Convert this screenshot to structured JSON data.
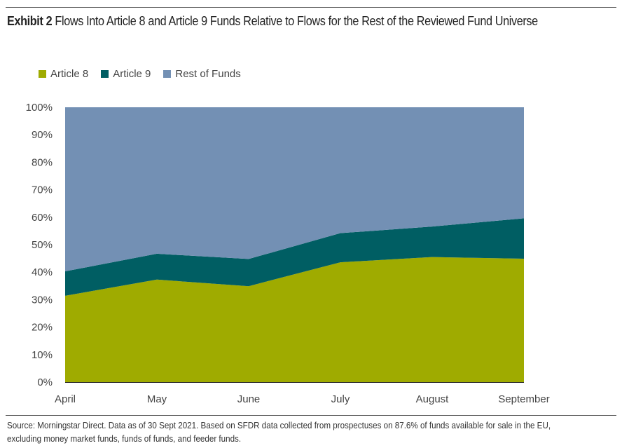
{
  "title_bold": "Exhibit 2",
  "title_rest": "Flows Into Article 8 and Article 9 Funds Relative to Flows for the Rest of the Reviewed Fund Universe",
  "source_line1": "Source: Morningstar Direct. Data as of 30 Sept 2021. Based on SFDR data collected from prospectuses on 87.6% of funds available for sale in the EU,",
  "source_line2": "excluding money market funds, funds of funds, and feeder funds.",
  "chart_data": {
    "type": "area",
    "stacked": true,
    "percent": true,
    "categories": [
      "April",
      "May",
      "June",
      "July",
      "August",
      "September"
    ],
    "series": [
      {
        "name": "Article 8",
        "color": "#9fab00",
        "values": [
          31.4,
          37.3,
          34.9,
          43.6,
          45.5,
          44.9
        ]
      },
      {
        "name": "Article 9",
        "color": "#005e63",
        "values": [
          8.9,
          9.4,
          9.9,
          10.6,
          11.1,
          14.7
        ]
      },
      {
        "name": "Rest of Funds",
        "color": "#7390b4",
        "values": [
          59.7,
          53.3,
          55.2,
          45.8,
          43.4,
          40.4
        ]
      }
    ],
    "yticks": [
      "0%",
      "10%",
      "20%",
      "30%",
      "40%",
      "50%",
      "60%",
      "70%",
      "80%",
      "90%",
      "100%"
    ],
    "ylim": [
      0,
      100
    ],
    "legend_position": "top-left",
    "grid": false
  }
}
